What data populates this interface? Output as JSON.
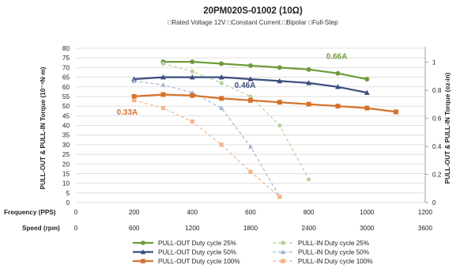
{
  "chart_data": {
    "type": "line",
    "title": "20PM020S-01002 (10Ω)",
    "subtitle": "□Rated Voltage  12V □Constant  Current  □Bipolar □Full-Step",
    "ylabel_left": "PULL-OUT & PULL-IN Torque (10⁻⁴N·m)",
    "ylabel_right": "PULL-OUT & PULL-IN Torque (oz-in)",
    "ylim_left": [
      0,
      80
    ],
    "yticks_left": [
      "0",
      "5",
      "10",
      "15",
      "20",
      "25",
      "30",
      "35",
      "40",
      "45",
      "50",
      "55",
      "60",
      "65",
      "70",
      "75",
      "80"
    ],
    "ylim_right": [
      0,
      1.1
    ],
    "yticks_right": [
      "0",
      "0.2",
      "0.4",
      "0.6",
      "0.8",
      "1"
    ],
    "xaxis_frequency": {
      "label": "Frequency (PPS)",
      "ticks": [
        "0",
        "200",
        "400",
        "600",
        "800",
        "1000",
        "1200"
      ],
      "xlim": [
        0,
        1200
      ]
    },
    "xaxis_speed": {
      "label": "Speed (rpm)",
      "ticks": [
        "0",
        "600",
        "1200",
        "1800",
        "2400",
        "3000",
        "3600"
      ]
    },
    "grid": "horizontal",
    "legend_position": "bottom",
    "series": [
      {
        "name": "PULL-OUT Duty cycle 25%",
        "color": "#6e9b3a",
        "dashed": false,
        "marker": "circle",
        "x": [
          300,
          400,
          500,
          600,
          700,
          800,
          900,
          1000
        ],
        "y": [
          73,
          73,
          72,
          71,
          70,
          69,
          67,
          64
        ]
      },
      {
        "name": "PULL-IN  Duty cycle 25%",
        "color": "#b7d39a",
        "dashed": true,
        "marker": "circle",
        "x": [
          300,
          400,
          500,
          600,
          700,
          800
        ],
        "y": [
          72,
          68,
          62,
          55,
          40,
          12
        ]
      },
      {
        "name": "PULL-OUT Duty cycle 50%",
        "color": "#3b4d7e",
        "dashed": false,
        "marker": "triangle",
        "x": [
          200,
          300,
          400,
          500,
          600,
          700,
          800,
          900,
          1000
        ],
        "y": [
          64,
          65,
          65,
          65,
          64,
          63,
          62,
          60,
          57
        ]
      },
      {
        "name": "PULL-IN  Duty cycle 50%",
        "color": "#a5b3d4",
        "dashed": true,
        "marker": "triangle",
        "x": [
          200,
          300,
          400,
          500,
          600,
          700
        ],
        "y": [
          63,
          61,
          57,
          49,
          29,
          3
        ]
      },
      {
        "name": "PULL-OUT Duty cycle 100%",
        "color": "#d5722b",
        "dashed": false,
        "marker": "square",
        "x": [
          200,
          300,
          400,
          500,
          600,
          700,
          800,
          900,
          1000,
          1100
        ],
        "y": [
          55,
          56,
          55.5,
          54,
          53,
          52,
          51,
          50,
          49,
          47
        ]
      },
      {
        "name": "PULL-IN  Duty cycle 100%",
        "color": "#f2b58b",
        "dashed": true,
        "marker": "square",
        "x": [
          200,
          300,
          400,
          500,
          600,
          700
        ],
        "y": [
          53,
          49,
          42,
          30,
          16,
          3
        ]
      }
    ],
    "annotations": [
      {
        "text": "0.66A",
        "color": "#6e9b3a"
      },
      {
        "text": "0.46A",
        "color": "#3b4d7e"
      },
      {
        "text": "0.33A",
        "color": "#d5722b"
      }
    ]
  }
}
